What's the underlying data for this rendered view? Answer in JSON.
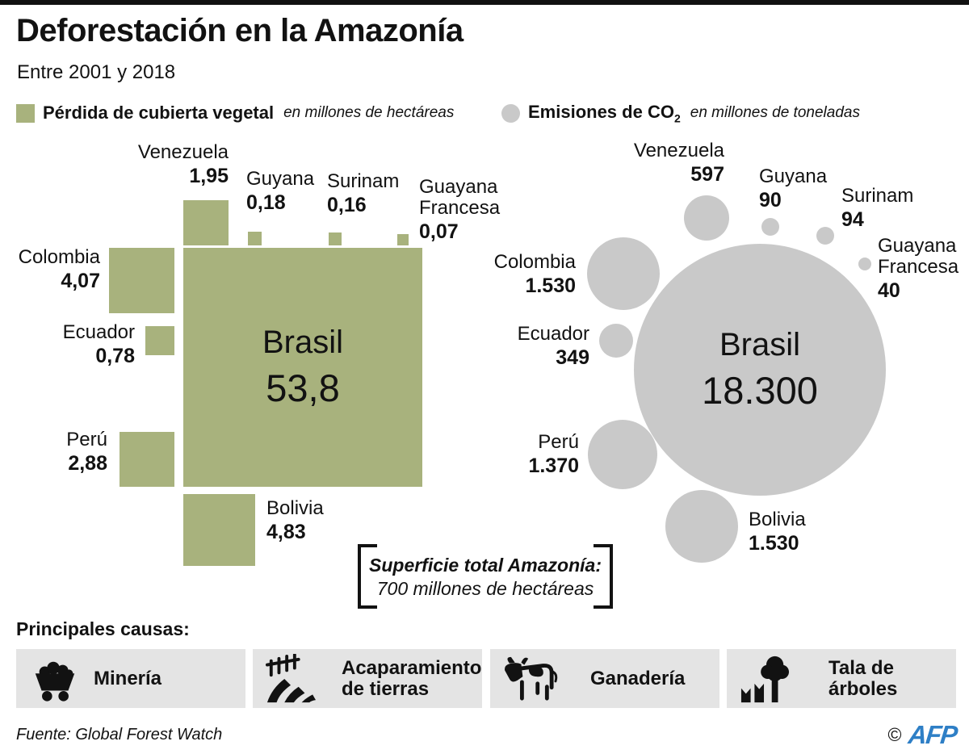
{
  "header": {
    "title": "Deforestación en la Amazonía",
    "subtitle": "Entre 2001 y 2018"
  },
  "legend": {
    "vegetation": {
      "label": "Pérdida de cubierta vegetal",
      "unit": "en millones de hectáreas",
      "swatch_color": "#a8b27d"
    },
    "co2": {
      "label_prefix": "Emisiones de CO",
      "subscript": "2",
      "unit": "en millones de toneladas",
      "swatch_color": "#c9c9c9"
    }
  },
  "chart_data": [
    {
      "type": "proportional_area_squares",
      "title": "Pérdida de cubierta vegetal",
      "unit": "millones de hectáreas",
      "color": "#a8b27d",
      "points": [
        {
          "country": "Brasil",
          "value": 53.8,
          "display": "53,8"
        },
        {
          "country": "Venezuela",
          "value": 1.95,
          "display": "1,95"
        },
        {
          "country": "Guyana",
          "value": 0.18,
          "display": "0,18"
        },
        {
          "country": "Surinam",
          "value": 0.16,
          "display": "0,16"
        },
        {
          "country": "Guayana Francesa",
          "value": 0.07,
          "display": "0,07"
        },
        {
          "country": "Colombia",
          "value": 4.07,
          "display": "4,07"
        },
        {
          "country": "Ecuador",
          "value": 0.78,
          "display": "0,78"
        },
        {
          "country": "Perú",
          "value": 2.88,
          "display": "2,88"
        },
        {
          "country": "Bolivia",
          "value": 4.83,
          "display": "4,83"
        }
      ]
    },
    {
      "type": "proportional_area_circles",
      "title": "Emisiones de CO2",
      "unit": "millones de toneladas",
      "color": "#c9c9c9",
      "points": [
        {
          "country": "Brasil",
          "value": 18300,
          "display": "18.300"
        },
        {
          "country": "Venezuela",
          "value": 597,
          "display": "597"
        },
        {
          "country": "Guyana",
          "value": 90,
          "display": "90"
        },
        {
          "country": "Surinam",
          "value": 94,
          "display": "94"
        },
        {
          "country": "Guayana Francesa",
          "value": 40,
          "display": "40"
        },
        {
          "country": "Colombia",
          "value": 1530,
          "display": "1.530"
        },
        {
          "country": "Ecuador",
          "value": 349,
          "display": "349"
        },
        {
          "country": "Perú",
          "value": 1370,
          "display": "1.370"
        },
        {
          "country": "Bolivia",
          "value": 1530,
          "display": "1.530"
        }
      ]
    }
  ],
  "annotation": {
    "line1": "Superficie total Amazonía:",
    "line2": "700 millones de hectáreas"
  },
  "causes": {
    "heading": "Principales causas:",
    "items": [
      {
        "label": "Minería",
        "icon": "mining-cart-icon"
      },
      {
        "label": "Acaparamiento de tierras",
        "icon": "plowed-field-icon"
      },
      {
        "label": "Ganadería",
        "icon": "cow-icon"
      },
      {
        "label": "Tala de árboles",
        "icon": "tree-logging-icon"
      }
    ]
  },
  "footer": {
    "source": "Fuente: Global Forest Watch",
    "copyright_symbol": "©",
    "agency": "AFP",
    "agency_color": "#2e7fc6"
  }
}
